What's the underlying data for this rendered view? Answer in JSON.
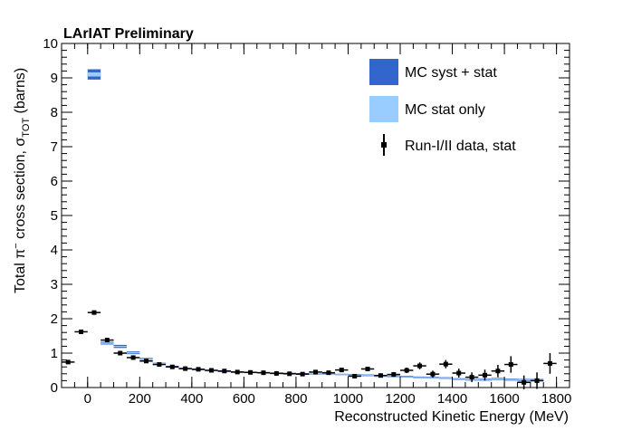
{
  "chart_data": {
    "type": "scatter",
    "title": "LArIAT Preliminary",
    "xlabel": "Reconstructed Kinetic Energy (MeV)",
    "ylabel_main": "Total π",
    "ylabel_sup": "−",
    "ylabel_mid": " cross section, σ",
    "ylabel_sub": "TOT",
    "ylabel_tail": " (barns)",
    "xlim": [
      -100,
      1850
    ],
    "ylim": [
      0,
      10
    ],
    "x_ticks": [
      0,
      200,
      400,
      600,
      800,
      1000,
      1200,
      1400,
      1600,
      1800
    ],
    "y_ticks": [
      0,
      1,
      2,
      3,
      4,
      5,
      6,
      7,
      8,
      9,
      10
    ],
    "grid": false,
    "legend_position": "top-right",
    "colors": {
      "syst": "#3366cc",
      "stat": "#99ccff",
      "data": "#000000"
    },
    "series": [
      {
        "name": "MC syst + stat",
        "kind": "band",
        "x": [
          25,
          75,
          125,
          175,
          225,
          275,
          325,
          375,
          425,
          475,
          525,
          575,
          625,
          675,
          725,
          775,
          825,
          875,
          925,
          975,
          1025,
          1075,
          1125,
          1175,
          1225,
          1275,
          1325,
          1375,
          1425,
          1475,
          1525,
          1575,
          1625,
          1675,
          1725
        ],
        "low": [
          8.95,
          1.25,
          1.15,
          0.97,
          0.8,
          0.67,
          0.59,
          0.53,
          0.5,
          0.47,
          0.45,
          0.43,
          0.42,
          0.41,
          0.4,
          0.39,
          0.38,
          0.37,
          0.37,
          0.36,
          0.34,
          0.33,
          0.31,
          0.3,
          0.29,
          0.27,
          0.26,
          0.25,
          0.22,
          0.2,
          0.2,
          0.22,
          0.2,
          0.18,
          0.18
        ],
        "high": [
          9.25,
          1.33,
          1.24,
          1.05,
          0.86,
          0.72,
          0.63,
          0.57,
          0.54,
          0.51,
          0.49,
          0.47,
          0.46,
          0.45,
          0.44,
          0.43,
          0.42,
          0.41,
          0.41,
          0.4,
          0.39,
          0.38,
          0.36,
          0.35,
          0.34,
          0.32,
          0.31,
          0.3,
          0.27,
          0.25,
          0.26,
          0.28,
          0.26,
          0.25,
          0.25
        ]
      },
      {
        "name": "MC stat only",
        "kind": "band",
        "x": [
          25,
          75,
          125,
          175,
          225,
          275,
          325,
          375,
          425,
          475,
          525,
          575,
          625,
          675,
          725,
          775,
          825,
          875,
          925,
          975,
          1025,
          1075,
          1125,
          1175,
          1225,
          1275,
          1325,
          1375,
          1425,
          1475,
          1525,
          1575,
          1625,
          1675,
          1725
        ],
        "low": [
          9.04,
          1.27,
          1.18,
          0.99,
          0.82,
          0.68,
          0.6,
          0.54,
          0.51,
          0.48,
          0.46,
          0.44,
          0.43,
          0.42,
          0.41,
          0.4,
          0.39,
          0.38,
          0.38,
          0.37,
          0.355,
          0.345,
          0.325,
          0.315,
          0.305,
          0.285,
          0.275,
          0.265,
          0.235,
          0.215,
          0.215,
          0.235,
          0.215,
          0.195,
          0.195
        ],
        "high": [
          9.16,
          1.31,
          1.21,
          1.03,
          0.84,
          0.71,
          0.62,
          0.56,
          0.53,
          0.5,
          0.48,
          0.46,
          0.45,
          0.44,
          0.43,
          0.42,
          0.41,
          0.4,
          0.4,
          0.39,
          0.375,
          0.365,
          0.345,
          0.335,
          0.325,
          0.305,
          0.295,
          0.285,
          0.255,
          0.235,
          0.245,
          0.265,
          0.245,
          0.235,
          0.235
        ]
      },
      {
        "name": "Run-I/II data, stat",
        "kind": "points",
        "x": [
          -75,
          -25,
          25,
          75,
          125,
          175,
          225,
          275,
          325,
          375,
          425,
          475,
          525,
          575,
          625,
          675,
          725,
          775,
          825,
          875,
          925,
          975,
          1025,
          1075,
          1125,
          1175,
          1225,
          1275,
          1325,
          1375,
          1425,
          1475,
          1525,
          1575,
          1625,
          1675,
          1725,
          1775
        ],
        "y": [
          0.74,
          1.62,
          2.18,
          1.38,
          1.0,
          0.87,
          0.77,
          0.67,
          0.6,
          0.55,
          0.53,
          0.5,
          0.48,
          0.45,
          0.44,
          0.43,
          0.41,
          0.4,
          0.39,
          0.45,
          0.43,
          0.51,
          0.33,
          0.54,
          0.35,
          0.38,
          0.5,
          0.63,
          0.39,
          0.68,
          0.42,
          0.3,
          0.36,
          0.48,
          0.67,
          0.15,
          0.2,
          0.7
        ],
        "err": [
          0.04,
          0.05,
          0.06,
          0.05,
          0.04,
          0.03,
          0.03,
          0.03,
          0.03,
          0.02,
          0.02,
          0.02,
          0.02,
          0.02,
          0.02,
          0.02,
          0.02,
          0.02,
          0.02,
          0.03,
          0.03,
          0.04,
          0.05,
          0.06,
          0.06,
          0.07,
          0.08,
          0.1,
          0.1,
          0.12,
          0.13,
          0.14,
          0.16,
          0.18,
          0.24,
          0.2,
          0.24,
          0.3
        ],
        "xerr": 25
      }
    ]
  }
}
